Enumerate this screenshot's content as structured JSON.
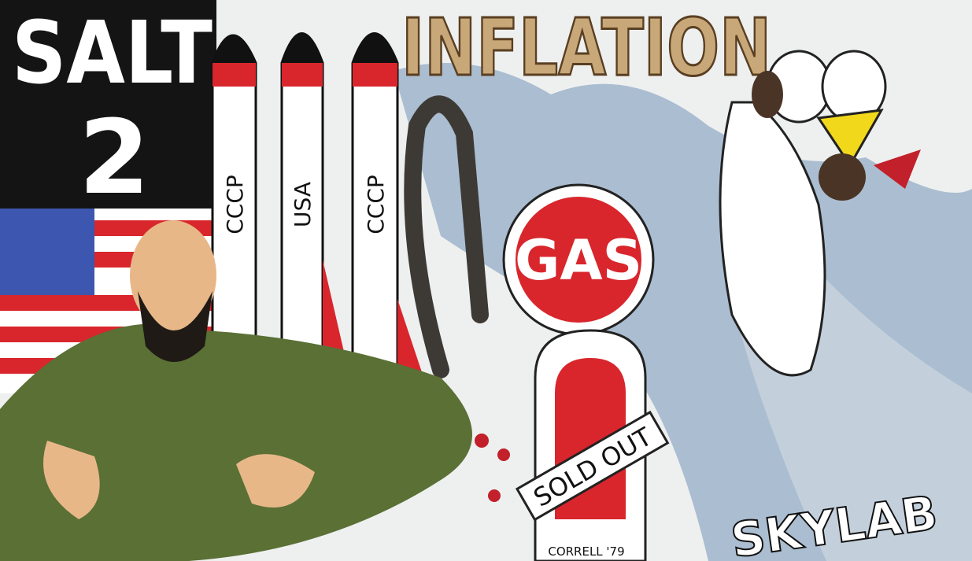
{
  "texts": {
    "salt": "SALT",
    "salt_number": "2",
    "inflation": "INFLATION",
    "missiles": [
      "CCCP",
      "USA",
      "CCCP"
    ],
    "gas": "GAS",
    "sold_out": "SOLD OUT",
    "signature": "CORRELL '79",
    "skylab": "SKYLAB"
  }
}
